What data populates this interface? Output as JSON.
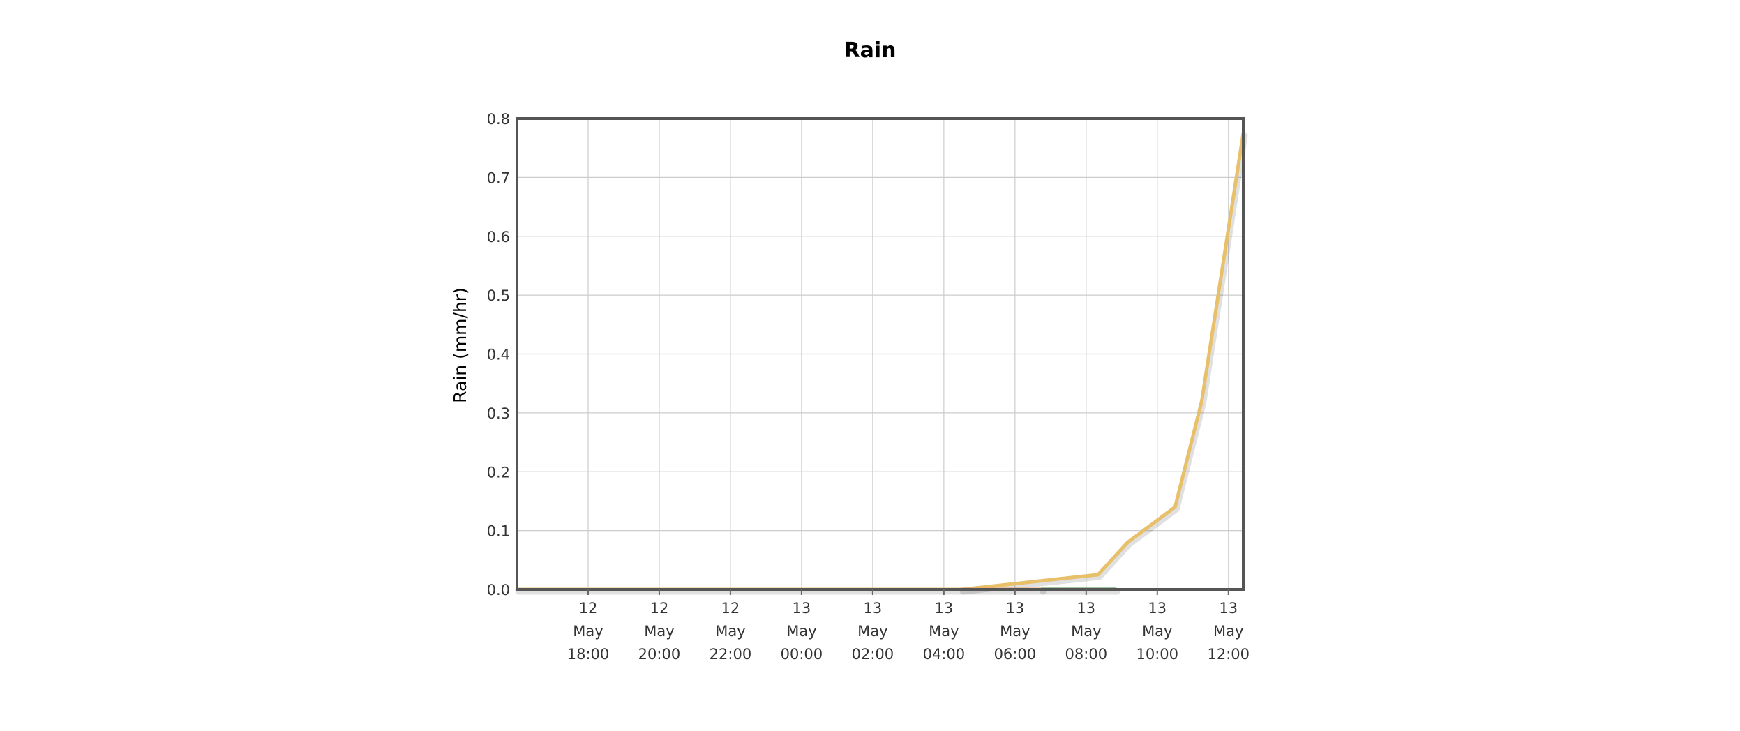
{
  "chart_data": {
    "type": "line",
    "title": "Rain",
    "ylabel": "Rain (mm/hr)",
    "xlabel": "",
    "x_type": "datetime",
    "xlim": [
      "2024-05-12T16:00",
      "2024-05-13T12:25"
    ],
    "ylim": [
      0,
      0.8
    ],
    "yticks": [
      "0.0",
      "0.1",
      "0.2",
      "0.3",
      "0.4",
      "0.5",
      "0.6",
      "0.7",
      "0.8"
    ],
    "xticks": [
      {
        "at": "2024-05-12T18:00",
        "lines": [
          "12",
          "May",
          "18:00"
        ]
      },
      {
        "at": "2024-05-12T20:00",
        "lines": [
          "12",
          "May",
          "20:00"
        ]
      },
      {
        "at": "2024-05-12T22:00",
        "lines": [
          "12",
          "May",
          "22:00"
        ]
      },
      {
        "at": "2024-05-13T00:00",
        "lines": [
          "13",
          "May",
          "00:00"
        ]
      },
      {
        "at": "2024-05-13T02:00",
        "lines": [
          "13",
          "May",
          "02:00"
        ]
      },
      {
        "at": "2024-05-13T04:00",
        "lines": [
          "13",
          "May",
          "04:00"
        ]
      },
      {
        "at": "2024-05-13T06:00",
        "lines": [
          "13",
          "May",
          "06:00"
        ]
      },
      {
        "at": "2024-05-13T08:00",
        "lines": [
          "13",
          "May",
          "08:00"
        ]
      },
      {
        "at": "2024-05-13T10:00",
        "lines": [
          "13",
          "May",
          "10:00"
        ]
      },
      {
        "at": "2024-05-13T12:00",
        "lines": [
          "13",
          "May",
          "12:00"
        ]
      }
    ],
    "grid": true,
    "legend": "none",
    "series": [
      {
        "color": "#e8c06a",
        "x": [
          "2024-05-12T16:00",
          "2024-05-13T04:30",
          "2024-05-13T08:20",
          "2024-05-13T09:10",
          "2024-05-13T10:30",
          "2024-05-13T11:15",
          "2024-05-13T12:25"
        ],
        "y": [
          0.0,
          0.0,
          0.025,
          0.08,
          0.14,
          0.32,
          0.775
        ]
      },
      {
        "color": "#e8a36a",
        "x": [
          "2024-05-13T04:30",
          "2024-05-13T06:45"
        ],
        "y": [
          0.0,
          0.0
        ]
      },
      {
        "color": "#3d8b37",
        "x": [
          "2024-05-13T06:45",
          "2024-05-13T08:50"
        ],
        "y": [
          0.0,
          0.0
        ]
      }
    ]
  }
}
